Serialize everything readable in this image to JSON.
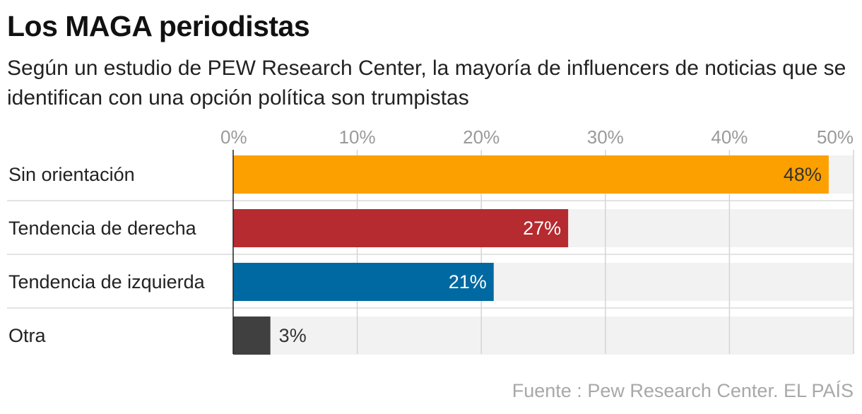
{
  "title": "Los MAGA periodistas",
  "subtitle": "Según un estudio de PEW Research Center, la mayoría de influencers de noticias que se identifican con una opción política son trumpistas",
  "source": "Fuente : Pew Research Center. EL PAÍS",
  "colors": {
    "sin_orientacion": "#FCA000",
    "derecha": "#B52B30",
    "izquierda": "#0069A1",
    "otra": "#404040",
    "track": "#F2F2F2",
    "grid": "#D4D4D4",
    "tick_text": "#9A9A9A"
  },
  "chart_data": {
    "type": "bar",
    "orientation": "horizontal",
    "categories": [
      "Sin orientación",
      "Tendencia de derecha",
      "Tendencia de izquierda",
      "Otra"
    ],
    "values": [
      48,
      27,
      21,
      3
    ],
    "value_labels": [
      "48%",
      "27%",
      "21%",
      "3%"
    ],
    "xlim": [
      0,
      50
    ],
    "xticks": [
      0,
      10,
      20,
      30,
      40,
      50
    ],
    "xtick_labels": [
      "0%",
      "10%",
      "20%",
      "30%",
      "40%",
      "50%"
    ],
    "xaxis_position": "top",
    "grid": true,
    "unit": "%"
  }
}
